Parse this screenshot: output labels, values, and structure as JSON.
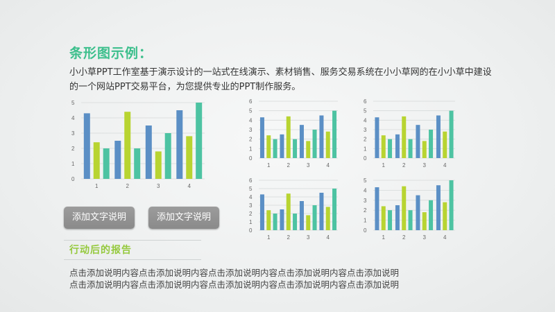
{
  "colors": {
    "title_green": "#3cbf8c",
    "section_green": "#95c93d",
    "series_blue": "#5b8fc5",
    "series_lime": "#b8d431",
    "series_teal": "#4dc3a2"
  },
  "heading": {
    "title": "条形图示例：",
    "subtitle": "小小草PPT工作室基于演示设计的一站式在线演示、素材销售、服务交易系统在小小草网的在小小草中建设的一个网站PPT交易平台，为您提供专业的PPT制作服务。"
  },
  "buttons": {
    "left_label": "添加文字说明",
    "right_label": "添加文字说明"
  },
  "section": {
    "title": "行动后的报告",
    "line1": "点击添加说明内容点击添加说明内容点击添加说明内容点击添加说明内容点击添加说明",
    "line2": "点击添加说明内容点击添加说明内容点击添加说明内容点击添加说明内容点击添加说明"
  },
  "chart_data": [
    {
      "type": "bar",
      "categories": [
        "1",
        "2",
        "3",
        "4"
      ],
      "ylim": [
        0,
        5
      ],
      "yticks": [
        "0",
        "1",
        "2",
        "3",
        "4",
        "5"
      ],
      "series": [
        {
          "values": [
            4.3,
            2.5,
            3.5,
            4.5
          ]
        },
        {
          "values": [
            2.4,
            4.4,
            1.8,
            2.8
          ]
        },
        {
          "values": [
            2.0,
            2.0,
            3.0,
            5.0
          ]
        }
      ]
    },
    {
      "type": "bar",
      "categories": [
        "1",
        "2",
        "3",
        "4"
      ],
      "ylim": [
        0,
        6
      ],
      "yticks": [
        "0",
        "1",
        "2",
        "3",
        "4",
        "5",
        "6"
      ],
      "series": [
        {
          "values": [
            4.3,
            2.5,
            3.5,
            4.5
          ]
        },
        {
          "values": [
            2.4,
            4.4,
            1.8,
            2.8
          ]
        },
        {
          "values": [
            2.0,
            2.0,
            3.0,
            5.0
          ]
        }
      ]
    },
    {
      "type": "bar",
      "categories": [
        "1",
        "2",
        "3",
        "4"
      ],
      "ylim": [
        0,
        6
      ],
      "yticks": [
        "0",
        "1",
        "2",
        "3",
        "4",
        "5",
        "6"
      ],
      "series": [
        {
          "values": [
            4.3,
            2.5,
            3.5,
            4.5
          ]
        },
        {
          "values": [
            2.4,
            4.4,
            1.8,
            2.8
          ]
        },
        {
          "values": [
            2.0,
            2.0,
            3.0,
            5.0
          ]
        }
      ]
    },
    {
      "type": "bar",
      "categories": [
        "1",
        "2",
        "3",
        "4"
      ],
      "ylim": [
        0,
        6
      ],
      "yticks": [
        "0",
        "1",
        "2",
        "3",
        "4",
        "5",
        "6"
      ],
      "series": [
        {
          "values": [
            4.3,
            2.5,
            3.5,
            4.5
          ]
        },
        {
          "values": [
            2.4,
            4.4,
            1.8,
            2.8
          ]
        },
        {
          "values": [
            2.0,
            2.0,
            3.0,
            5.0
          ]
        }
      ]
    },
    {
      "type": "bar",
      "categories": [
        "1",
        "2",
        "3",
        "4"
      ],
      "ylim": [
        0,
        5
      ],
      "yticks": [
        "0",
        "1",
        "2",
        "3",
        "4",
        "5"
      ],
      "series": [
        {
          "values": [
            4.3,
            2.5,
            3.5,
            4.5
          ]
        },
        {
          "values": [
            2.4,
            4.4,
            1.8,
            2.8
          ]
        },
        {
          "values": [
            2.0,
            2.0,
            3.0,
            5.0
          ]
        }
      ]
    }
  ]
}
